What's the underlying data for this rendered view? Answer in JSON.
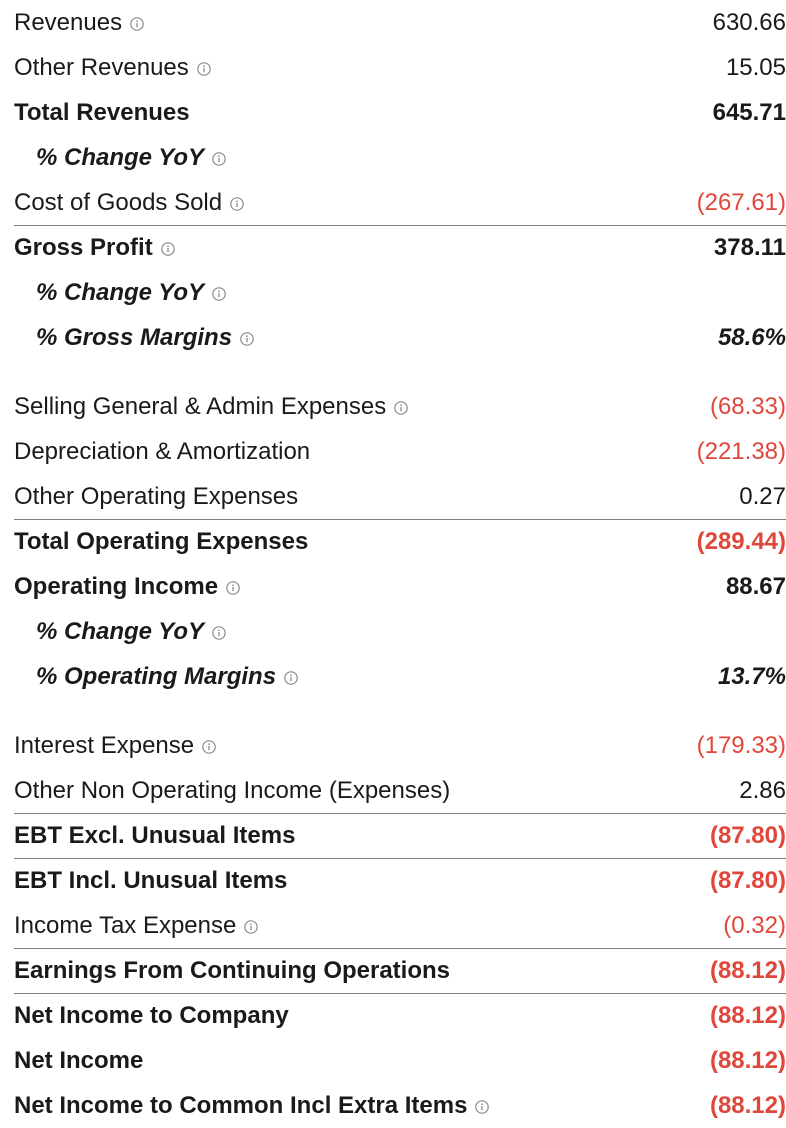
{
  "rows": [
    {
      "label": "Revenues",
      "value": "630.66",
      "style": "normal",
      "info": true,
      "neg": false
    },
    {
      "label": "Other Revenues",
      "value": "15.05",
      "style": "normal",
      "info": true,
      "neg": false
    },
    {
      "label": "Total Revenues",
      "value": "645.71",
      "style": "bold",
      "info": false,
      "neg": false
    },
    {
      "label": "% Change YoY",
      "value": "",
      "style": "italic",
      "info": true,
      "neg": false
    },
    {
      "label": "Cost of Goods Sold",
      "value": "(267.61)",
      "style": "normal",
      "info": true,
      "neg": true
    },
    {
      "label": "Gross Profit",
      "value": "378.11",
      "style": "bold",
      "info": true,
      "neg": false,
      "borderTop": true
    },
    {
      "label": "% Change YoY",
      "value": "",
      "style": "italic",
      "info": true,
      "neg": false
    },
    {
      "label": "% Gross Margins",
      "value": "58.6%",
      "style": "italic",
      "info": true,
      "neg": false
    },
    {
      "label": "Selling General & Admin Expenses",
      "value": "(68.33)",
      "style": "normal",
      "info": true,
      "neg": true,
      "gap": true
    },
    {
      "label": "Depreciation & Amortization",
      "value": "(221.38)",
      "style": "normal",
      "info": false,
      "neg": true
    },
    {
      "label": "Other Operating Expenses",
      "value": "0.27",
      "style": "normal",
      "info": false,
      "neg": false
    },
    {
      "label": "Total Operating Expenses",
      "value": "(289.44)",
      "style": "bold",
      "info": false,
      "neg": true,
      "borderTop": true
    },
    {
      "label": "Operating Income",
      "value": "88.67",
      "style": "bold",
      "info": true,
      "neg": false
    },
    {
      "label": "% Change YoY",
      "value": "",
      "style": "italic",
      "info": true,
      "neg": false
    },
    {
      "label": "% Operating Margins",
      "value": "13.7%",
      "style": "italic",
      "info": true,
      "neg": false
    },
    {
      "label": "Interest Expense",
      "value": "(179.33)",
      "style": "normal",
      "info": true,
      "neg": true,
      "gap": true
    },
    {
      "label": "Other Non Operating Income (Expenses)",
      "value": "2.86",
      "style": "normal",
      "info": false,
      "neg": false
    },
    {
      "label": "EBT Excl. Unusual Items",
      "value": "(87.80)",
      "style": "bold",
      "info": false,
      "neg": true,
      "borderTop": true
    },
    {
      "label": "EBT Incl. Unusual Items",
      "value": "(87.80)",
      "style": "bold",
      "info": false,
      "neg": true,
      "borderTop": true
    },
    {
      "label": "Income Tax Expense",
      "value": "(0.32)",
      "style": "normal",
      "info": true,
      "neg": true
    },
    {
      "label": "Earnings From Continuing Operations",
      "value": "(88.12)",
      "style": "bold",
      "info": false,
      "neg": true,
      "borderTop": true
    },
    {
      "label": "Net Income to Company",
      "value": "(88.12)",
      "style": "bold",
      "info": false,
      "neg": true,
      "borderTop": true
    },
    {
      "label": "Net Income",
      "value": "(88.12)",
      "style": "bold",
      "info": false,
      "neg": true
    },
    {
      "label": "Net Income to Common Incl Extra Items",
      "value": "(88.12)",
      "style": "bold",
      "info": true,
      "neg": true
    }
  ],
  "colors": {
    "negative": "#e0463a",
    "text": "#1a1a1a",
    "divider": "#808080",
    "icon": "#8a8a8a"
  },
  "icon": "info-icon"
}
